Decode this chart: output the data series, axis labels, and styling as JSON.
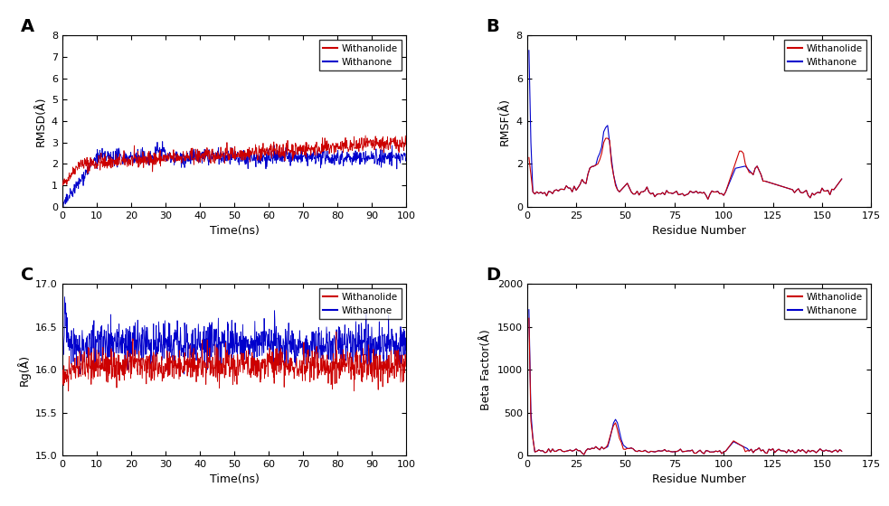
{
  "panel_labels": [
    "A",
    "B",
    "C",
    "D"
  ],
  "legend_labels": [
    "Withanolide",
    "Withanone"
  ],
  "colors": [
    "#cc0000",
    "#0000cc"
  ],
  "panel_A": {
    "xlabel": "Time(ns)",
    "ylabel": "RMSD(Å)",
    "xlim": [
      0,
      100
    ],
    "ylim": [
      0,
      8
    ],
    "xticks": [
      0,
      10,
      20,
      30,
      40,
      50,
      60,
      70,
      80,
      90,
      100
    ],
    "yticks": [
      0,
      1,
      2,
      3,
      4,
      5,
      6,
      7,
      8
    ]
  },
  "panel_B": {
    "xlabel": "Residue Number",
    "ylabel": "RMSF(Å)",
    "xlim": [
      0,
      175
    ],
    "ylim": [
      0,
      8
    ],
    "xticks": [
      0,
      25,
      50,
      75,
      100,
      125,
      150,
      175
    ],
    "yticks": [
      0,
      2,
      4,
      6,
      8
    ]
  },
  "panel_C": {
    "xlabel": "Time(ns)",
    "ylabel": "Rg(Å)",
    "xlim": [
      0,
      100
    ],
    "ylim": [
      15,
      17
    ],
    "xticks": [
      0,
      10,
      20,
      30,
      40,
      50,
      60,
      70,
      80,
      90,
      100
    ],
    "yticks": [
      15,
      15.5,
      16,
      16.5,
      17
    ]
  },
  "panel_D": {
    "xlabel": "Residue Number",
    "ylabel": "Beta Factor(Å)",
    "xlim": [
      0,
      175
    ],
    "ylim": [
      0,
      2000
    ],
    "xticks": [
      0,
      25,
      50,
      75,
      100,
      125,
      150,
      175
    ],
    "yticks": [
      0,
      500,
      1000,
      1500,
      2000
    ]
  }
}
